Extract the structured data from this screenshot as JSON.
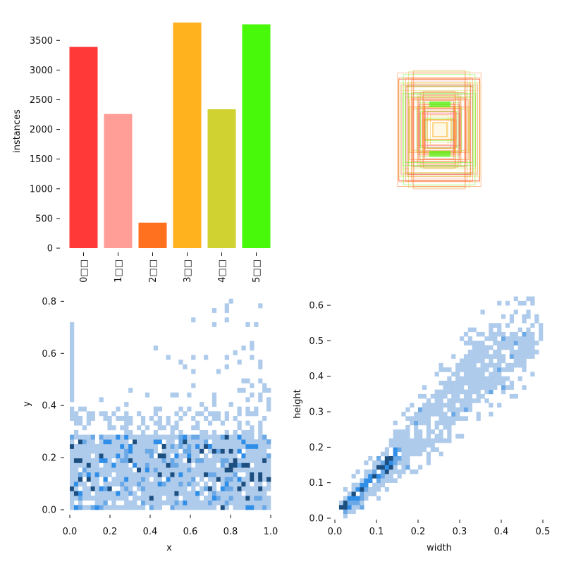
{
  "chart_data": [
    {
      "type": "bar",
      "ylabel": "instances",
      "ylim": [
        0,
        3800
      ],
      "yticks": [
        0,
        500,
        1000,
        1500,
        2000,
        2500,
        3000,
        3500
      ],
      "categories": [
        "0□□",
        "1□□",
        "2□□",
        "3□□",
        "4□□",
        "5□□"
      ],
      "values": [
        3390,
        2260,
        430,
        3800,
        2340,
        3770
      ],
      "colors": [
        "#ff3838",
        "#ff9d97",
        "#ff701f",
        "#ffb21d",
        "#cfd231",
        "#48f90a"
      ]
    },
    {
      "type": "boxes",
      "description_colors": [
        "#ff3838",
        "#ff9d97",
        "#ff701f",
        "#ffb21d",
        "#cfd231",
        "#48f90a"
      ]
    },
    {
      "type": "heatmap",
      "xlabel": "x",
      "ylabel": "y",
      "xlim": [
        0,
        1
      ],
      "ylim": [
        0,
        0.82
      ],
      "xticks": [
        0.0,
        0.2,
        0.4,
        0.6,
        0.8,
        1.0
      ],
      "yticks": [
        0.0,
        0.2,
        0.4,
        0.6,
        0.8
      ]
    },
    {
      "type": "heatmap",
      "xlabel": "width",
      "ylabel": "height",
      "xlim": [
        0,
        0.5
      ],
      "ylim": [
        0,
        0.63
      ],
      "xticks": [
        0.0,
        0.1,
        0.2,
        0.3,
        0.4,
        0.5
      ],
      "yticks": [
        0.0,
        0.1,
        0.2,
        0.3,
        0.4,
        0.5,
        0.6
      ]
    }
  ],
  "colors": {
    "hist_light": "#aecbeb",
    "hist_mid": "#6aa8e6",
    "hist_bright": "#2f8ee8",
    "hist_dark": "#1c4e80"
  }
}
